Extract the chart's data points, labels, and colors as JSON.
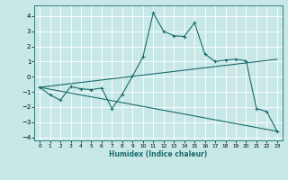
{
  "title": "",
  "xlabel": "Humidex (Indice chaleur)",
  "ylabel": "",
  "bg_color": "#c8e8e8",
  "line_color": "#1a6b6b",
  "grid_color": "#ffffff",
  "xlim": [
    -0.5,
    23.5
  ],
  "ylim": [
    -4.2,
    4.7
  ],
  "xticks": [
    0,
    1,
    2,
    3,
    4,
    5,
    6,
    7,
    8,
    9,
    10,
    11,
    12,
    13,
    14,
    15,
    16,
    17,
    18,
    19,
    20,
    21,
    22,
    23
  ],
  "yticks": [
    -4,
    -3,
    -2,
    -1,
    0,
    1,
    2,
    3,
    4
  ],
  "series1_x": [
    0,
    1,
    2,
    3,
    4,
    5,
    6,
    7,
    8,
    9,
    10,
    11,
    12,
    13,
    14,
    15,
    16,
    17,
    18,
    19,
    20,
    21,
    22,
    23
  ],
  "series1_y": [
    -0.7,
    -1.2,
    -1.55,
    -0.65,
    -0.8,
    -0.85,
    -0.75,
    -2.1,
    -1.15,
    0.05,
    1.3,
    4.2,
    3.0,
    2.7,
    2.65,
    3.55,
    1.5,
    1.0,
    1.1,
    1.15,
    1.05,
    -2.1,
    -2.3,
    -3.6
  ],
  "series2_x": [
    0,
    23
  ],
  "series2_y": [
    -0.7,
    1.15
  ],
  "series3_x": [
    0,
    23
  ],
  "series3_y": [
    -0.7,
    -3.6
  ],
  "figwidth": 3.2,
  "figheight": 2.0,
  "dpi": 100
}
